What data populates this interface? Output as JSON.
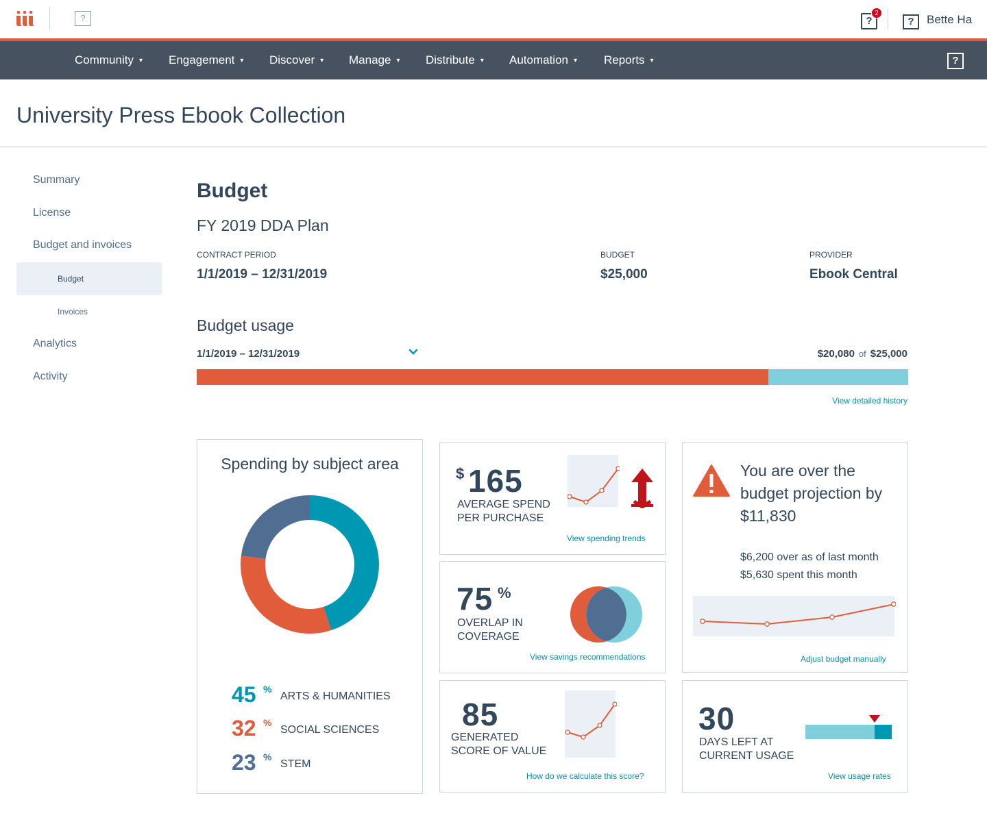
{
  "topbar": {
    "user_name": "Bette Ha",
    "notification_count": "2",
    "help_glyph": "?",
    "placeholder_glyph": "?"
  },
  "nav": {
    "items": [
      {
        "label": "Community"
      },
      {
        "label": "Engagement"
      },
      {
        "label": "Discover"
      },
      {
        "label": "Manage"
      },
      {
        "label": "Distribute"
      },
      {
        "label": "Automation"
      },
      {
        "label": "Reports"
      }
    ],
    "chevron": "⌄",
    "help_glyph": "?"
  },
  "page_title": "University Press Ebook Collection",
  "sidebar": {
    "items": [
      {
        "label": "Summary"
      },
      {
        "label": "License"
      },
      {
        "label": "Budget and invoices"
      },
      {
        "label": "Budget"
      },
      {
        "label": "Invoices"
      },
      {
        "label": "Analytics"
      },
      {
        "label": "Activity"
      }
    ],
    "active": "Budget"
  },
  "budget": {
    "heading": "Budget",
    "plan_name": "FY 2019 DDA Plan",
    "contract_period_label": "CONTRACT PERIOD",
    "contract_period_value": "1/1/2019 – 12/31/2019",
    "budget_label": "BUDGET",
    "budget_value": "$25,000",
    "provider_label": "PROVIDER",
    "provider_value": "Ebook Central"
  },
  "usage": {
    "heading": "Budget usage",
    "period": "1/1/2019 – 12/31/2019",
    "spent": "$20,080",
    "of_label": "of",
    "total": "$25,000",
    "spent_fraction": 0.8032,
    "history_link": "View detailed history"
  },
  "subject_card": {
    "title": "Spending by subject area",
    "percent_symbol": "%",
    "slices": [
      {
        "pct": 45,
        "pct_text": "45",
        "label": "ARTS & HUMANITIES",
        "color": "#0097b2"
      },
      {
        "pct": 32,
        "pct_text": "32",
        "label": "SOCIAL SCIENCES",
        "color": "#e05c3a"
      },
      {
        "pct": 23,
        "pct_text": "23",
        "label": "STEM",
        "color": "#506e91"
      }
    ]
  },
  "spend_card": {
    "currency": "$",
    "value": "165",
    "label_line1": "AVERAGE SPEND",
    "label_line2": "PER PURCHASE",
    "link": "View spending trends",
    "trend_icon": "up-down-arrow-icon"
  },
  "overlap_card": {
    "value": "75",
    "percent_symbol": "%",
    "label_line1": "OVERLAP IN",
    "label_line2": "COVERAGE",
    "link": "View savings recommendations"
  },
  "score_card": {
    "value": "85",
    "label_line1": "GENERATED",
    "label_line2": "SCORE OF VALUE",
    "link": "How do we  calculate this score?"
  },
  "over_card": {
    "title": "You are over the budget projection by $11,830",
    "line1": "$6,200 over as of last month",
    "line2": "$5,630 spent this month",
    "link": "Adjust budget manually",
    "icon": "warning-icon"
  },
  "days_card": {
    "value": "30",
    "label_line1": "DAYS LEFT AT",
    "label_line2": "CURRENT USAGE",
    "link": "View usage rates",
    "usage_marker_fraction": 0.8
  },
  "colors": {
    "accent_orange": "#e05c3a",
    "teal": "#0097b2",
    "light_teal": "#7fd0dc",
    "slate": "#506e91",
    "nav_bg": "#475260",
    "alert_red": "#c0141c"
  }
}
